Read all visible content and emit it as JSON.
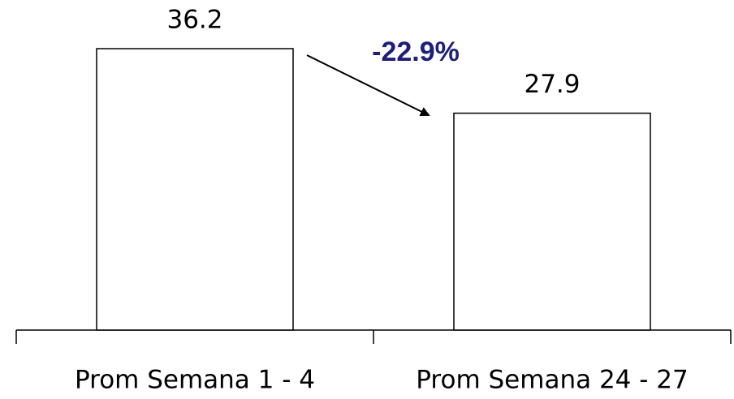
{
  "chart_data": {
    "type": "bar",
    "categories": [
      "Prom Semana 1 - 4",
      "Prom Semana 24 - 27"
    ],
    "values": [
      36.2,
      27.9
    ],
    "color": "#ffffff",
    "annotation": "-22.9%"
  }
}
